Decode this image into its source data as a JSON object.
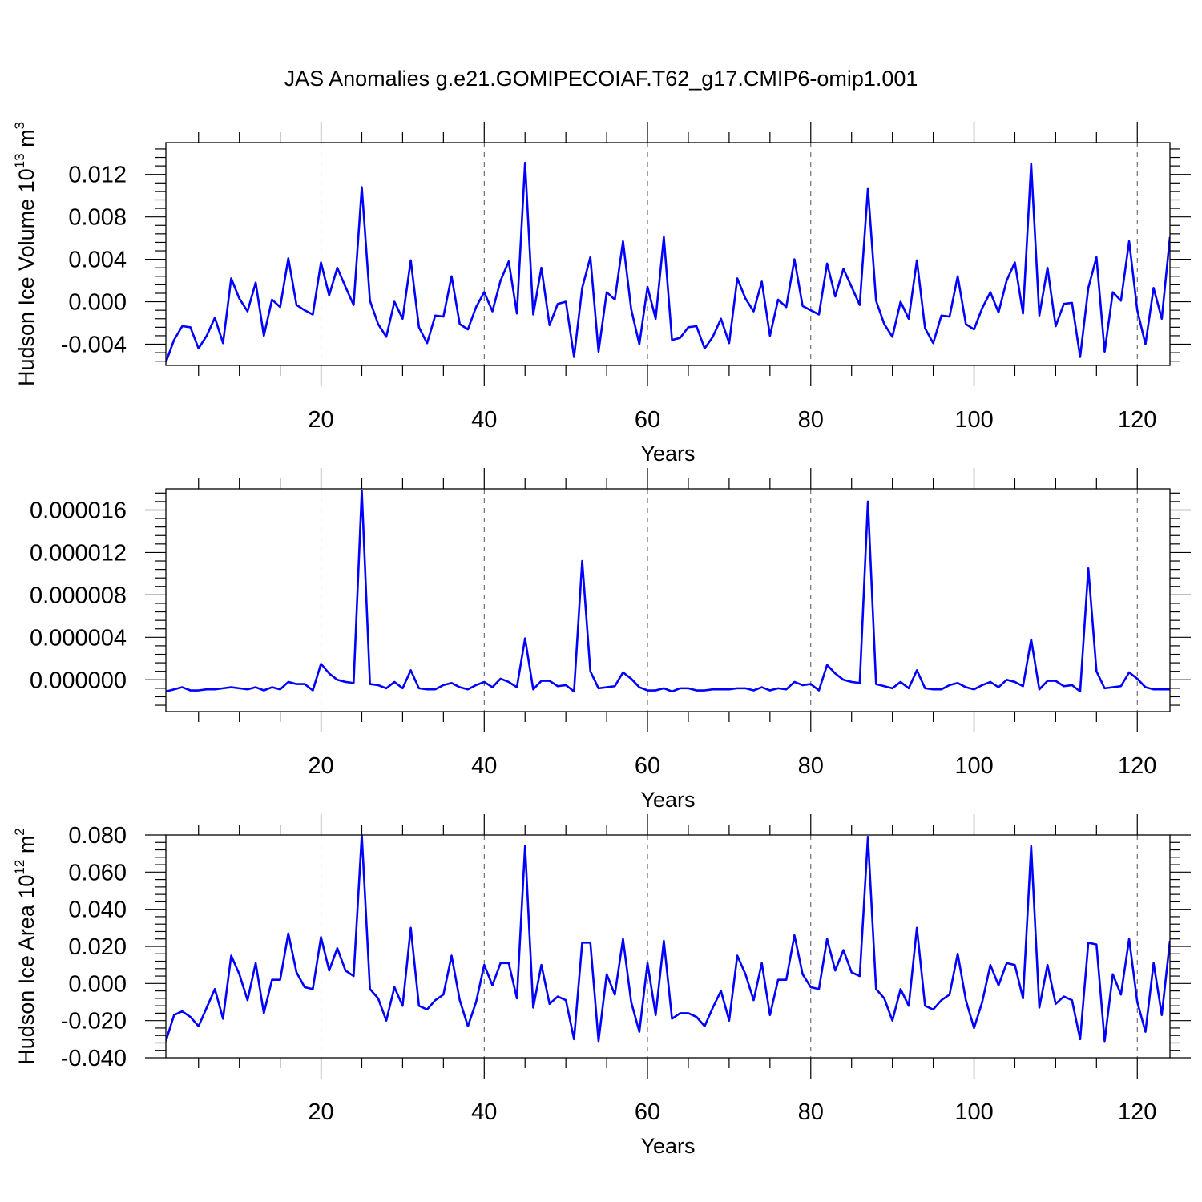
{
  "figure": {
    "title": "JAS Anomalies g.e21.GOMIPECOIAF.T62_g17.CMIP6-omip1.001"
  },
  "colors": {
    "series": "#0000ff",
    "grid": "#555555",
    "axes": "#000000",
    "background": "#ffffff"
  },
  "chart_data": [
    {
      "type": "line",
      "name": "panel-volume",
      "title": "",
      "xlabel": "Years",
      "ylabel_main": "Hudson Ice Volume 10",
      "ylabel_sup": "13",
      "ylabel_unit": " m",
      "ylabel_unit_sup": "3",
      "xlim": [
        1,
        124
      ],
      "ylim": [
        -0.006,
        0.015
      ],
      "xticks": [
        20,
        40,
        60,
        80,
        100,
        120
      ],
      "xtick_labels": [
        "20",
        "40",
        "60",
        "80",
        "100",
        "120"
      ],
      "yticks": [
        -0.004,
        0.0,
        0.004,
        0.008,
        0.012
      ],
      "ytick_labels": [
        "-0.004",
        "0.000",
        "0.004",
        "0.008",
        "0.012"
      ],
      "grid_x": true,
      "series": [
        {
          "name": "Hudson Ice Volume anomaly",
          "x_start": 1,
          "values": [
            -0.0057,
            -0.0036,
            -0.0023,
            -0.0024,
            -0.0044,
            -0.0032,
            -0.0015,
            -0.0039,
            0.0022,
            0.0003,
            -0.0009,
            0.0018,
            -0.0032,
            0.0002,
            -0.0005,
            0.0041,
            -0.0003,
            -0.0008,
            -0.0012,
            0.0037,
            0.0006,
            0.0032,
            0.0014,
            -0.0003,
            0.0108,
            0.0001,
            -0.0021,
            -0.0033,
            0.0,
            -0.0016,
            0.0039,
            -0.0024,
            -0.0039,
            -0.0013,
            -0.0014,
            0.0024,
            -0.0021,
            -0.0026,
            -0.0005,
            0.0009,
            -0.0009,
            0.002,
            0.0038,
            -0.0011,
            0.0131,
            -0.0012,
            0.0032,
            -0.0022,
            -0.0002,
            0.0,
            -0.0052,
            0.0013,
            0.0042,
            -0.0047,
            0.0009,
            0.0002,
            0.0057,
            -0.0007,
            -0.004,
            0.0014,
            -0.0016,
            0.0061,
            -0.0036,
            -0.0034,
            -0.0024,
            -0.0023,
            -0.0044,
            -0.0033,
            -0.0016,
            -0.0039,
            0.0022,
            0.0003,
            -0.0009,
            0.0019,
            -0.0032,
            0.0002,
            -0.0005,
            0.004,
            -0.0004,
            -0.0008,
            -0.0012,
            0.0036,
            0.0005,
            0.0031,
            0.0014,
            -0.0003,
            0.0107,
            0.0001,
            -0.0021,
            -0.0033,
            0.0,
            -0.0016,
            0.0039,
            -0.0025,
            -0.0039,
            -0.0013,
            -0.0014,
            0.0024,
            -0.0021,
            -0.0026,
            -0.0006,
            0.0009,
            -0.001,
            0.002,
            0.0037,
            -0.0011,
            0.013,
            -0.0013,
            0.0032,
            -0.0023,
            -0.0002,
            -0.0001,
            -0.0052,
            0.0013,
            0.0042,
            -0.0047,
            0.0009,
            0.0001,
            0.0057,
            -0.0008,
            -0.004,
            0.0013,
            -0.0016,
            0.0061
          ]
        }
      ]
    },
    {
      "type": "line",
      "name": "panel-middle",
      "title": "",
      "xlabel": "Years",
      "ylabel_main": "",
      "ylabel_sup": "",
      "ylabel_unit": "",
      "ylabel_unit_sup": "",
      "xlim": [
        1,
        124
      ],
      "ylim": [
        -3e-06,
        1.8e-05
      ],
      "xticks": [
        20,
        40,
        60,
        80,
        100,
        120
      ],
      "xtick_labels": [
        "20",
        "40",
        "60",
        "80",
        "100",
        "120"
      ],
      "yticks": [
        0.0,
        4e-06,
        8e-06,
        1.2e-05,
        1.6e-05
      ],
      "ytick_labels": [
        "0.000000",
        "0.000004",
        "0.000008",
        "0.000012",
        "0.000016"
      ],
      "grid_x": true,
      "series": [
        {
          "name": "anomaly",
          "x_start": 1,
          "values": [
            -1.1e-06,
            -9e-07,
            -7e-07,
            -1e-06,
            -1e-06,
            -9e-07,
            -9e-07,
            -8e-07,
            -7e-07,
            -8e-07,
            -9e-07,
            -7e-07,
            -1e-06,
            -7e-07,
            -9e-07,
            -2e-07,
            -4e-07,
            -4e-07,
            -1e-06,
            1.5e-06,
            6e-07,
            0.0,
            -2e-07,
            -3e-07,
            1.78e-05,
            -4e-07,
            -5e-07,
            -8e-07,
            -2e-07,
            -8e-07,
            9e-07,
            -8e-07,
            -9e-07,
            -9e-07,
            -5e-07,
            -3e-07,
            -7e-07,
            -9e-07,
            -5e-07,
            -2e-07,
            -7e-07,
            1e-07,
            -2e-07,
            -7e-07,
            3.9e-06,
            -9e-07,
            -1e-07,
            -1e-07,
            -6e-07,
            -5e-07,
            -1.1e-06,
            1.12e-05,
            8e-07,
            -8e-07,
            -7e-07,
            -6e-07,
            7e-07,
            1e-07,
            -7e-07,
            -1e-06,
            -1e-06,
            -8e-07,
            -1.1e-06,
            -8e-07,
            -8e-07,
            -1e-06,
            -1e-06,
            -9e-07,
            -9e-07,
            -9e-07,
            -8e-07,
            -8e-07,
            -1e-06,
            -7e-07,
            -1e-06,
            -8e-07,
            -9e-07,
            -2e-07,
            -5e-07,
            -4e-07,
            -1e-06,
            1.4e-06,
            6e-07,
            0.0,
            -2e-07,
            -3e-07,
            1.68e-05,
            -4e-07,
            -6e-07,
            -8e-07,
            -2e-07,
            -8e-07,
            9e-07,
            -8e-07,
            -9e-07,
            -9e-07,
            -5e-07,
            -3e-07,
            -7e-07,
            -9e-07,
            -5e-07,
            -2e-07,
            -7e-07,
            0.0,
            -2e-07,
            -6e-07,
            3.8e-06,
            -9e-07,
            -1e-07,
            -1e-07,
            -6e-07,
            -5e-07,
            -1.1e-06,
            1.05e-05,
            8e-07,
            -8e-07,
            -7e-07,
            -6e-07,
            7e-07,
            1e-07,
            -7e-07,
            -9e-07,
            -9e-07,
            -9e-07
          ]
        }
      ]
    },
    {
      "type": "line",
      "name": "panel-area",
      "title": "",
      "xlabel": "Years",
      "ylabel_main": "Hudson Ice Area 10",
      "ylabel_sup": "12",
      "ylabel_unit": " m",
      "ylabel_unit_sup": "2",
      "xlim": [
        1,
        124
      ],
      "ylim": [
        -0.04,
        0.08
      ],
      "xticks": [
        20,
        40,
        60,
        80,
        100,
        120
      ],
      "xtick_labels": [
        "20",
        "40",
        "60",
        "80",
        "100",
        "120"
      ],
      "yticks": [
        -0.04,
        -0.02,
        0.0,
        0.02,
        0.04,
        0.06,
        0.08
      ],
      "ytick_labels": [
        "-0.040",
        "-0.020",
        "0.000",
        "0.020",
        "0.040",
        "0.060",
        "0.080"
      ],
      "grid_x": true,
      "series": [
        {
          "name": "Hudson Ice Area anomaly",
          "x_start": 1,
          "values": [
            -0.031,
            -0.017,
            -0.015,
            -0.018,
            -0.023,
            -0.013,
            -0.003,
            -0.019,
            0.015,
            0.005,
            -0.009,
            0.011,
            -0.016,
            0.002,
            0.002,
            0.027,
            0.006,
            -0.002,
            -0.003,
            0.025,
            0.007,
            0.019,
            0.007,
            0.004,
            0.08,
            -0.003,
            -0.008,
            -0.02,
            -0.002,
            -0.012,
            0.03,
            -0.012,
            -0.014,
            -0.009,
            -0.006,
            0.015,
            -0.009,
            -0.023,
            -0.01,
            0.01,
            -0.001,
            0.011,
            0.011,
            -0.008,
            0.074,
            -0.013,
            0.01,
            -0.011,
            -0.007,
            -0.009,
            -0.03,
            0.022,
            0.022,
            -0.031,
            0.005,
            -0.006,
            0.024,
            -0.01,
            -0.026,
            0.011,
            -0.017,
            0.023,
            -0.019,
            -0.016,
            -0.016,
            -0.018,
            -0.023,
            -0.013,
            -0.004,
            -0.02,
            0.015,
            0.005,
            -0.009,
            0.011,
            -0.017,
            0.002,
            0.002,
            0.026,
            0.005,
            -0.002,
            -0.003,
            0.024,
            0.007,
            0.018,
            0.006,
            0.004,
            0.079,
            -0.003,
            -0.008,
            -0.02,
            -0.003,
            -0.012,
            0.03,
            -0.012,
            -0.014,
            -0.009,
            -0.006,
            0.016,
            -0.009,
            -0.024,
            -0.01,
            0.01,
            -0.001,
            0.011,
            0.01,
            -0.008,
            0.074,
            -0.013,
            0.01,
            -0.011,
            -0.007,
            -0.009,
            -0.03,
            0.022,
            0.021,
            -0.031,
            0.005,
            -0.006,
            0.024,
            -0.01,
            -0.026,
            0.011,
            -0.017,
            0.023
          ]
        }
      ]
    }
  ]
}
